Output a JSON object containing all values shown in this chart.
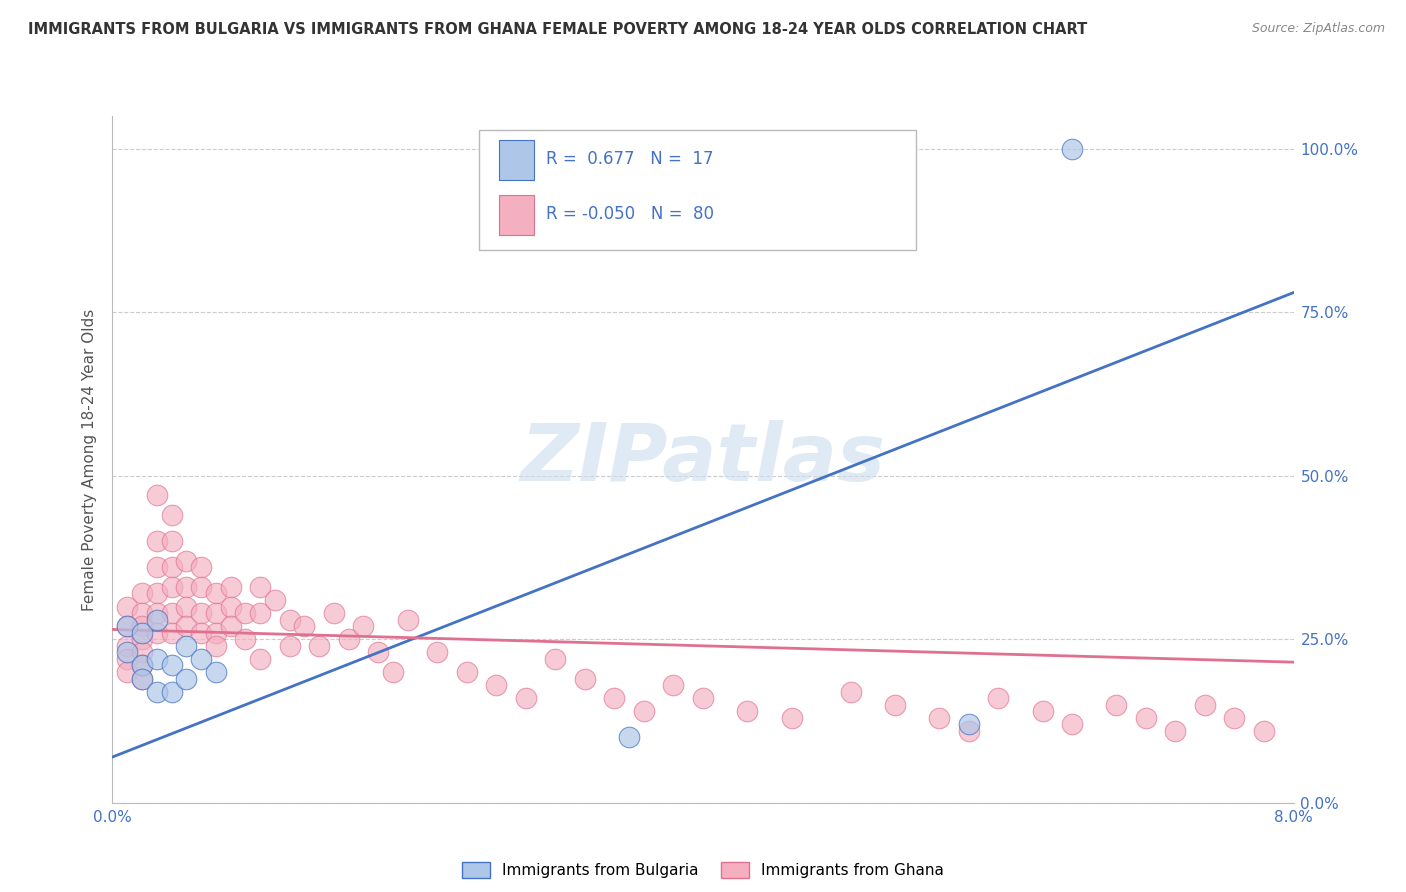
{
  "title": "IMMIGRANTS FROM BULGARIA VS IMMIGRANTS FROM GHANA FEMALE POVERTY AMONG 18-24 YEAR OLDS CORRELATION CHART",
  "source": "Source: ZipAtlas.com",
  "ylabel": "Female Poverty Among 18-24 Year Olds",
  "xlim": [
    0.0,
    0.08
  ],
  "ylim": [
    0.0,
    1.05
  ],
  "ytick_labels": [
    "0.0%",
    "25.0%",
    "50.0%",
    "75.0%",
    "100.0%"
  ],
  "ytick_values": [
    0.0,
    0.25,
    0.5,
    0.75,
    1.0
  ],
  "bulgaria_R": 0.677,
  "bulgaria_N": 17,
  "ghana_R": -0.05,
  "ghana_N": 80,
  "bulgaria_color": "#aec6e8",
  "ghana_color": "#f4afc0",
  "bulgaria_line_color": "#4472c4",
  "ghana_line_color": "#e07090",
  "watermark_text": "ZIPatlas",
  "background_color": "#ffffff",
  "grid_color": "#cccccc",
  "title_color": "#333333",
  "right_axis_color": "#4472c4",
  "bul_line_x": [
    0.0,
    0.08
  ],
  "bul_line_y": [
    0.07,
    0.78
  ],
  "gha_line_x": [
    0.0,
    0.08
  ],
  "gha_line_y": [
    0.265,
    0.215
  ],
  "bulgaria_scatter_x": [
    0.001,
    0.001,
    0.002,
    0.002,
    0.002,
    0.003,
    0.003,
    0.003,
    0.004,
    0.004,
    0.005,
    0.005,
    0.006,
    0.007,
    0.035,
    0.058,
    0.065
  ],
  "bulgaria_scatter_y": [
    0.27,
    0.23,
    0.21,
    0.19,
    0.26,
    0.17,
    0.22,
    0.28,
    0.21,
    0.17,
    0.19,
    0.24,
    0.22,
    0.2,
    0.1,
    0.12,
    1.0
  ],
  "ghana_scatter_x": [
    0.001,
    0.001,
    0.001,
    0.001,
    0.001,
    0.002,
    0.002,
    0.002,
    0.002,
    0.002,
    0.002,
    0.002,
    0.003,
    0.003,
    0.003,
    0.003,
    0.003,
    0.003,
    0.004,
    0.004,
    0.004,
    0.004,
    0.004,
    0.004,
    0.005,
    0.005,
    0.005,
    0.005,
    0.006,
    0.006,
    0.006,
    0.006,
    0.007,
    0.007,
    0.007,
    0.007,
    0.008,
    0.008,
    0.008,
    0.009,
    0.009,
    0.01,
    0.01,
    0.01,
    0.011,
    0.012,
    0.012,
    0.013,
    0.014,
    0.015,
    0.016,
    0.017,
    0.018,
    0.019,
    0.02,
    0.022,
    0.024,
    0.026,
    0.028,
    0.03,
    0.032,
    0.034,
    0.036,
    0.038,
    0.04,
    0.043,
    0.046,
    0.05,
    0.053,
    0.056,
    0.058,
    0.06,
    0.063,
    0.065,
    0.068,
    0.07,
    0.072,
    0.074,
    0.076,
    0.078
  ],
  "ghana_scatter_y": [
    0.3,
    0.27,
    0.24,
    0.22,
    0.2,
    0.32,
    0.29,
    0.27,
    0.25,
    0.23,
    0.21,
    0.19,
    0.47,
    0.4,
    0.36,
    0.32,
    0.29,
    0.26,
    0.44,
    0.4,
    0.36,
    0.33,
    0.29,
    0.26,
    0.37,
    0.33,
    0.3,
    0.27,
    0.36,
    0.33,
    0.29,
    0.26,
    0.32,
    0.29,
    0.26,
    0.24,
    0.33,
    0.3,
    0.27,
    0.29,
    0.25,
    0.33,
    0.29,
    0.22,
    0.31,
    0.28,
    0.24,
    0.27,
    0.24,
    0.29,
    0.25,
    0.27,
    0.23,
    0.2,
    0.28,
    0.23,
    0.2,
    0.18,
    0.16,
    0.22,
    0.19,
    0.16,
    0.14,
    0.18,
    0.16,
    0.14,
    0.13,
    0.17,
    0.15,
    0.13,
    0.11,
    0.16,
    0.14,
    0.12,
    0.15,
    0.13,
    0.11,
    0.15,
    0.13,
    0.11
  ]
}
